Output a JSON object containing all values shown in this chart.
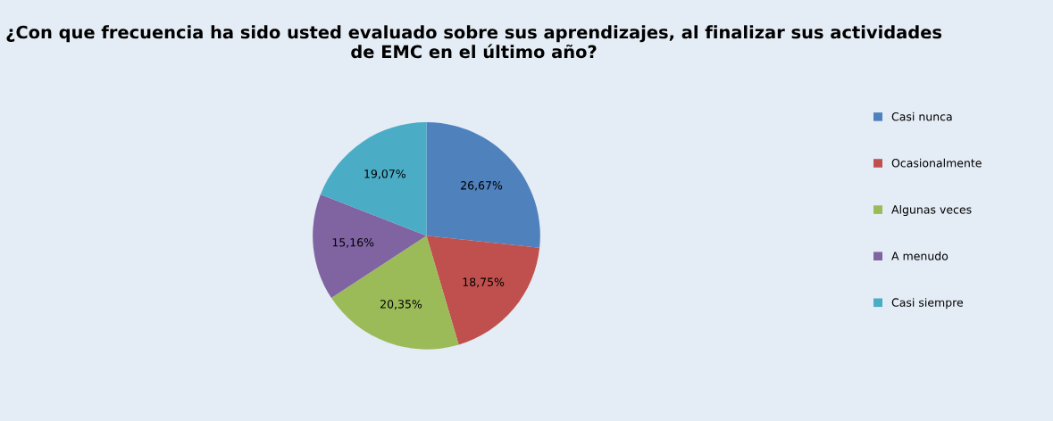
{
  "chart_data": {
    "type": "pie",
    "title": "¿Con que frecuencia ha sido usted evaluado sobre sus aprendizajes, al finalizar sus actividades de EMC en el último año?",
    "categories": [
      "Casi nunca",
      "Ocasionalmente",
      "Algunas veces",
      "A menudo",
      "Casi siempre"
    ],
    "values": [
      26.67,
      18.75,
      20.35,
      15.16,
      19.07
    ],
    "value_labels": [
      "26,67%",
      "18,75%",
      "20,35%",
      "15,16%",
      "19,07%"
    ],
    "colors": [
      "#4f81bd",
      "#c0504d",
      "#9bbb59",
      "#8064a2",
      "#4bacc6"
    ],
    "legend": "right"
  }
}
